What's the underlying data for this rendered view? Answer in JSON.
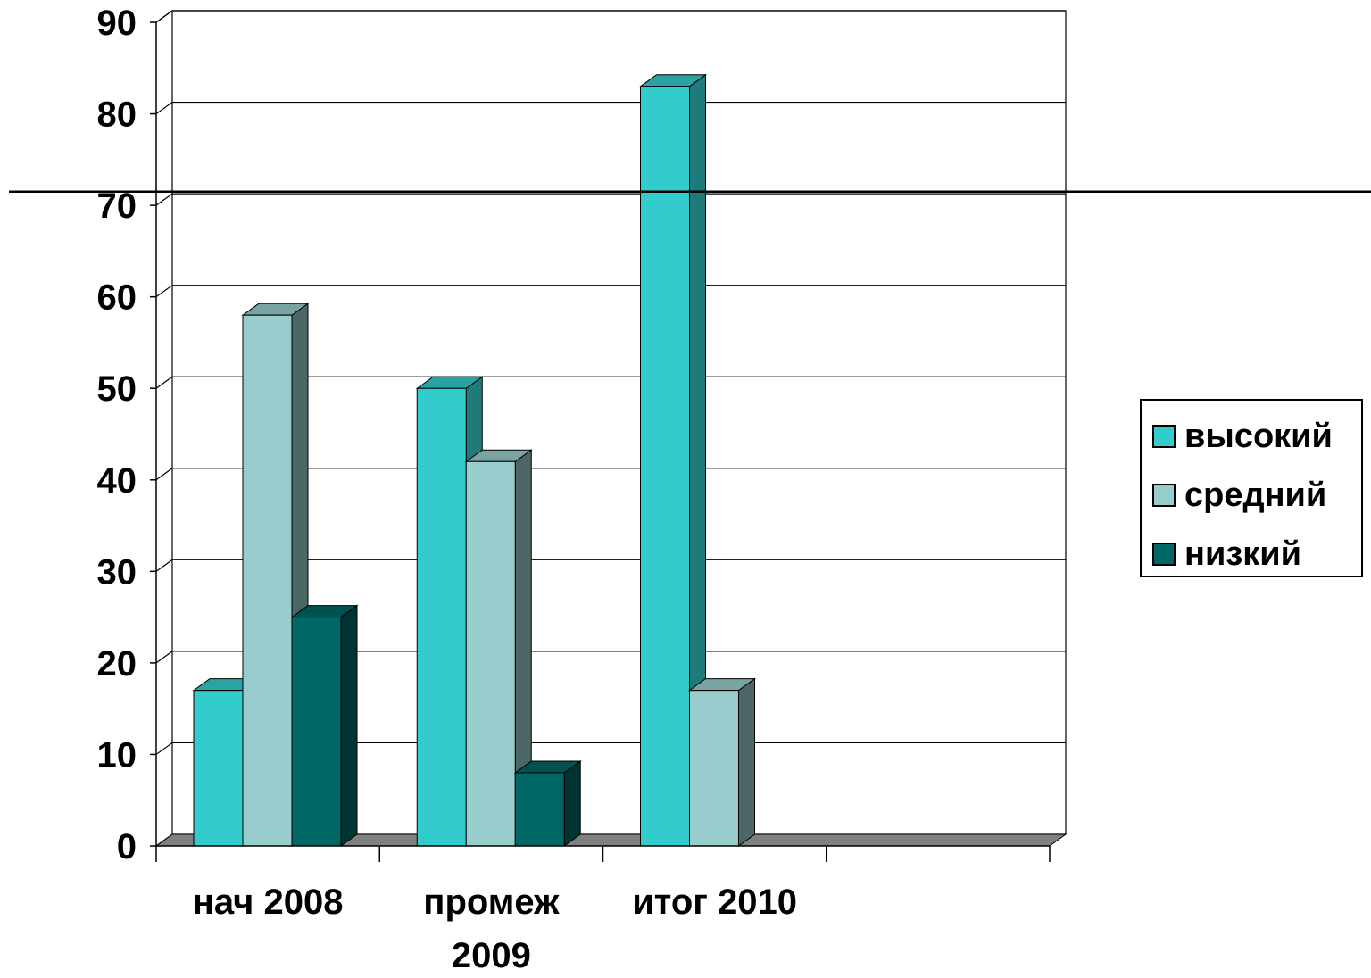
{
  "chart_data": {
    "type": "bar",
    "categories": [
      "нач 2008",
      "промеж 2009",
      "итог 2010",
      ""
    ],
    "category_lines": [
      [
        "нач 2008"
      ],
      [
        "промеж",
        "2009"
      ],
      [
        "итог 2010"
      ],
      []
    ],
    "series": [
      {
        "name": "высокий",
        "values": [
          17,
          50,
          83,
          0
        ],
        "color": "#33CCCC",
        "side_color": "#1F7A7A",
        "top_color": "#29A3A3"
      },
      {
        "name": "средний",
        "values": [
          58,
          42,
          17,
          0
        ],
        "color": "#99CCCC",
        "side_color": "#4D6666",
        "top_color": "#7AA3A3"
      },
      {
        "name": "низкий",
        "values": [
          25,
          8,
          0,
          0
        ],
        "color": "#006666",
        "side_color": "#003333",
        "top_color": "#005252"
      }
    ],
    "ylim": [
      0,
      90
    ],
    "yticks": [
      0,
      10,
      20,
      30,
      40,
      50,
      60,
      70,
      80,
      90
    ],
    "ytick_labels": [
      "0",
      "10",
      "20",
      "30",
      "40",
      "50",
      "60",
      "70",
      "80",
      "90"
    ],
    "grid": true,
    "legend_position": "right",
    "style": "3d-column",
    "reference_line_value": 71.5,
    "title": "",
    "xlabel": "",
    "ylabel": ""
  }
}
